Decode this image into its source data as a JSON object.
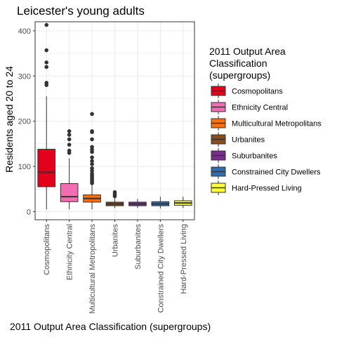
{
  "chart_data": {
    "type": "boxplot",
    "title": "Leicester's young adults",
    "xlabel": "2011 Output Area Classification (supergroups)",
    "ylabel": "Residents aged 20 to 24",
    "ylim": [
      -18,
      420
    ],
    "yticks": [
      0,
      100,
      200,
      300,
      400
    ],
    "grid": true,
    "legend": {
      "title_lines": [
        "2011 Output Area",
        "Classification",
        "(supergroups)"
      ],
      "position": "right"
    },
    "series": [
      {
        "name": "Cosmopolitans",
        "color": "#e4001a",
        "min": 5,
        "q1": 55,
        "median": 87,
        "q3": 138,
        "max": 255,
        "outliers": [
          280,
          285,
          320,
          330,
          357,
          413
        ]
      },
      {
        "name": "Ethnicity Central",
        "color": "#f46db3",
        "min": 5,
        "q1": 22,
        "median": 33,
        "q3": 62,
        "max": 118,
        "outliers": [
          130,
          135,
          148,
          160,
          170,
          178
        ]
      },
      {
        "name": "Multicultural Metropolitans",
        "color": "#ff6f0a",
        "min": 5,
        "q1": 21,
        "median": 29,
        "q3": 37,
        "max": 60,
        "outliers": [
          63,
          66,
          70,
          73,
          77,
          80,
          84,
          90,
          96,
          105,
          112,
          120,
          132,
          137,
          143,
          160,
          176,
          178,
          216
        ]
      },
      {
        "name": "Urbanites",
        "color": "#8c4a1d",
        "min": 8,
        "q1": 13,
        "median": 17,
        "q3": 21,
        "max": 30,
        "outliers": [
          34,
          38,
          43
        ]
      },
      {
        "name": "Suburbanites",
        "color": "#7b2d8e",
        "min": 8,
        "q1": 13,
        "median": 17,
        "q3": 21,
        "max": 28,
        "outliers": []
      },
      {
        "name": "Constrained City Dwellers",
        "color": "#2e6cb6",
        "min": 7,
        "q1": 13,
        "median": 17,
        "q3": 22,
        "max": 33,
        "outliers": []
      },
      {
        "name": "Hard-Pressed Living",
        "color": "#ffff33",
        "min": 8,
        "q1": 14,
        "median": 19,
        "q3": 24,
        "max": 33,
        "outliers": []
      }
    ]
  }
}
